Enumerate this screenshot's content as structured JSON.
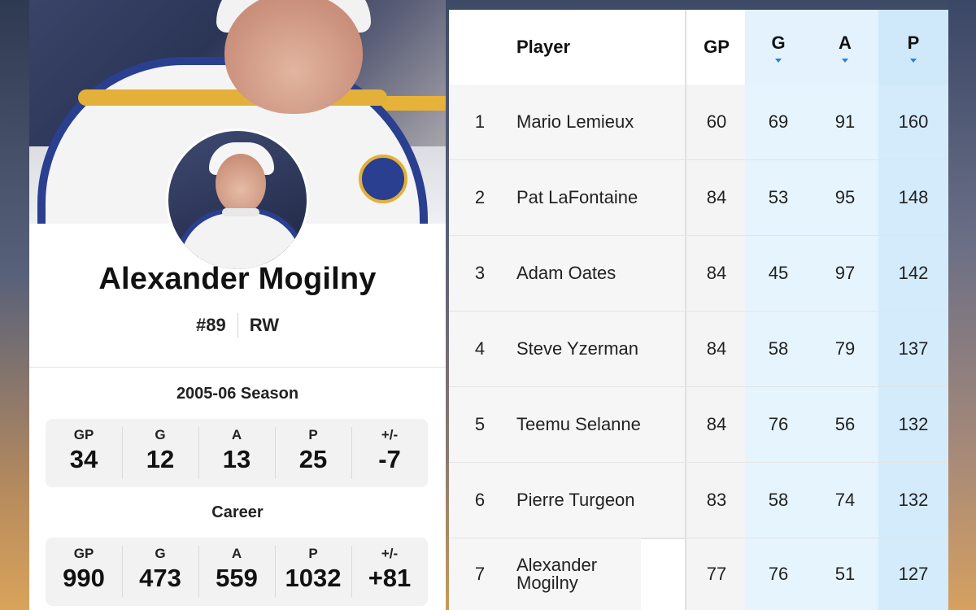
{
  "player_card": {
    "name": "Alexander Mogilny",
    "jersey_number_label": "#89",
    "position": "RW",
    "season_title": "2005-06 Season",
    "season_stats": [
      {
        "label": "GP",
        "value": "34"
      },
      {
        "label": "G",
        "value": "12"
      },
      {
        "label": "A",
        "value": "13"
      },
      {
        "label": "P",
        "value": "25"
      },
      {
        "label": "+/-",
        "value": "-7"
      }
    ],
    "career_title": "Career",
    "career_stats": [
      {
        "label": "GP",
        "value": "990"
      },
      {
        "label": "G",
        "value": "473"
      },
      {
        "label": "A",
        "value": "559"
      },
      {
        "label": "P",
        "value": "1032"
      },
      {
        "label": "+/-",
        "value": "+81"
      }
    ]
  },
  "leaderboard": {
    "headers": {
      "player": "Player",
      "gp": "GP",
      "g": "G",
      "a": "A",
      "p": "P"
    },
    "rows": [
      {
        "rank": "1",
        "player": "Mario Lemieux",
        "gp": "60",
        "g": "69",
        "a": "91",
        "p": "160"
      },
      {
        "rank": "2",
        "player": "Pat LaFontaine",
        "gp": "84",
        "g": "53",
        "a": "95",
        "p": "148"
      },
      {
        "rank": "3",
        "player": "Adam Oates",
        "gp": "84",
        "g": "45",
        "a": "97",
        "p": "142"
      },
      {
        "rank": "4",
        "player": "Steve Yzerman",
        "gp": "84",
        "g": "58",
        "a": "79",
        "p": "137"
      },
      {
        "rank": "5",
        "player": "Teemu Selanne",
        "gp": "84",
        "g": "76",
        "a": "56",
        "p": "132"
      },
      {
        "rank": "6",
        "player": "Pierre Turgeon",
        "gp": "83",
        "g": "58",
        "a": "74",
        "p": "132"
      },
      {
        "rank": "7",
        "player": "Alexander Mogilny",
        "gp": "77",
        "g": "76",
        "a": "51",
        "p": "127"
      }
    ]
  },
  "colors": {
    "team_blue": "#2a3f8f",
    "team_gold": "#e3b03a",
    "sort_accent": "#2a7ee0",
    "highlight_column": "#e3f2fc"
  }
}
